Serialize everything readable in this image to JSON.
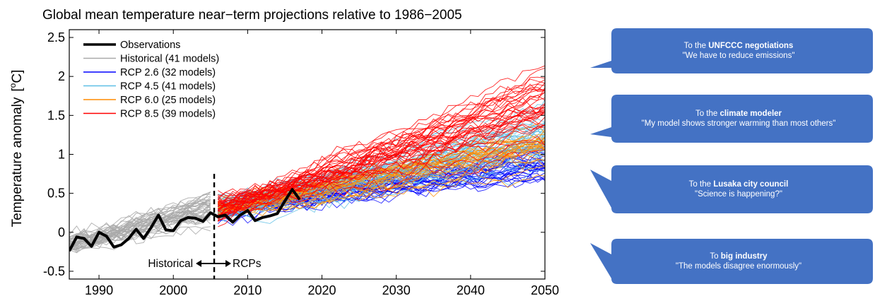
{
  "colors": {
    "bubble": "#4472c4",
    "observations": "#000000",
    "historical": "#a9a9a9",
    "rcp26": "#0000ff",
    "rcp45": "#5fbfe6",
    "rcp60": "#ff8c00",
    "rcp85": "#ff0000"
  },
  "messages": [
    {
      "prefix": "To the ",
      "bold": "UNFCCC negotiations",
      "suffix": "",
      "quote": "\"We have to reduce emissions\""
    },
    {
      "prefix": "To the ",
      "bold": "climate modeler",
      "suffix": "",
      "quote": "\"My model shows stronger warming than most others\""
    },
    {
      "prefix": "To the ",
      "bold": "Lusaka city council",
      "suffix": "",
      "quote": "\"Science is happening?\""
    },
    {
      "prefix": "To ",
      "bold": "big industry",
      "suffix": "",
      "quote": "\"The models disagree enormously\""
    }
  ],
  "chart_data": {
    "type": "line",
    "title": "Global mean temperature near−term projections relative to 1986−2005",
    "ylabel_text": "Temperature anomaly",
    "ylabel_unit_open": "[",
    "ylabel_unit_sup": "o",
    "ylabel_unit_letter": "C",
    "ylabel_unit_close": "]",
    "xlabel": "",
    "xlim": [
      1986,
      2050
    ],
    "ylim": [
      -0.6,
      2.6
    ],
    "x_ticks": [
      1990,
      2000,
      2010,
      2020,
      2030,
      2040,
      2050
    ],
    "y_ticks": [
      -0.5,
      0,
      0.5,
      1,
      1.5,
      2,
      2.5
    ],
    "y_tick_labels": [
      "-0.5",
      "0",
      "0.5",
      "1",
      "1.5",
      "2",
      "2.5"
    ],
    "grid": false,
    "legend_position": "top-left",
    "divider_year": 2005.5,
    "annotation_left": "Historical",
    "annotation_right": "RCPs",
    "legend": [
      {
        "label": "Observations",
        "series": "observations"
      },
      {
        "label": "Historical (41 models)",
        "series": "historical"
      },
      {
        "label": "RCP 2.6 (32 models)",
        "series": "rcp26"
      },
      {
        "label": "RCP 4.5 (41 models)",
        "series": "rcp45"
      },
      {
        "label": "RCP 6.0 (25 models)",
        "series": "rcp60"
      },
      {
        "label": "RCP 8.5 (39 models)",
        "series": "rcp85"
      }
    ],
    "observations": {
      "years": [
        1986,
        1987,
        1988,
        1989,
        1990,
        1991,
        1992,
        1993,
        1994,
        1995,
        1996,
        1997,
        1998,
        1999,
        2000,
        2001,
        2002,
        2003,
        2004,
        2005,
        2006,
        2007,
        2008,
        2009,
        2010,
        2011,
        2012,
        2013,
        2014,
        2015,
        2016,
        2017
      ],
      "values": [
        -0.24,
        -0.06,
        -0.08,
        -0.18,
        0.0,
        -0.05,
        -0.19,
        -0.16,
        -0.08,
        0.04,
        -0.08,
        0.06,
        0.22,
        0.03,
        0.02,
        0.15,
        0.19,
        0.18,
        0.14,
        0.25,
        0.2,
        0.22,
        0.13,
        0.22,
        0.28,
        0.15,
        0.19,
        0.21,
        0.24,
        0.4,
        0.55,
        0.42
      ]
    },
    "scenarios": [
      {
        "series": "historical",
        "start": 1986,
        "end": 2005,
        "start_mean": -0.15,
        "end_mean": 0.3,
        "spread": 0.18,
        "runs": 41
      },
      {
        "series": "rcp26",
        "start": 2006,
        "end": 2050,
        "start_mean": 0.3,
        "end_mean": 0.9,
        "spread": 0.28,
        "runs": 32
      },
      {
        "series": "rcp45",
        "start": 2006,
        "end": 2050,
        "start_mean": 0.3,
        "end_mean": 1.2,
        "spread": 0.3,
        "runs": 41
      },
      {
        "series": "rcp60",
        "start": 2006,
        "end": 2050,
        "start_mean": 0.3,
        "end_mean": 1.1,
        "spread": 0.28,
        "runs": 25
      },
      {
        "series": "rcp85",
        "start": 2006,
        "end": 2050,
        "start_mean": 0.3,
        "end_mean": 1.65,
        "spread": 0.38,
        "runs": 39
      }
    ]
  }
}
